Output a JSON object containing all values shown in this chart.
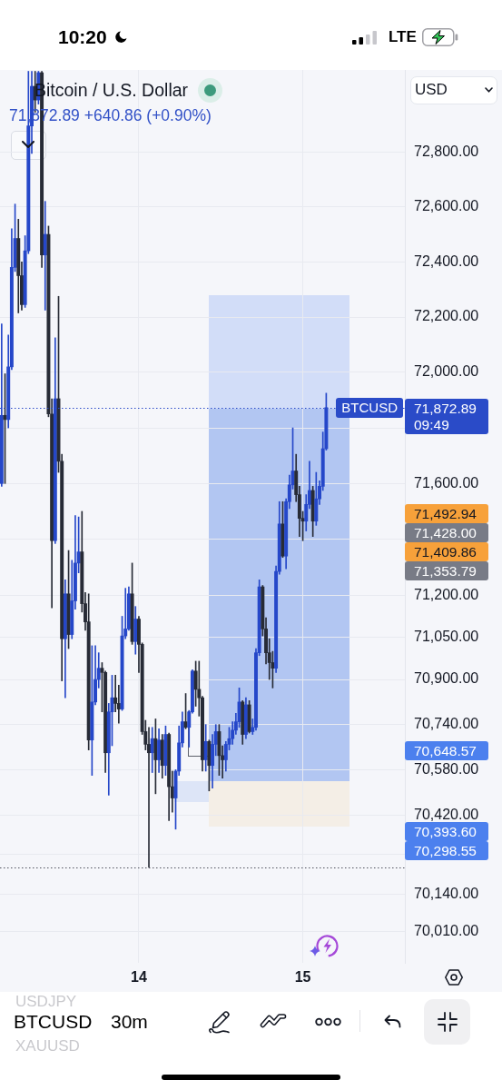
{
  "chart_data": {
    "type": "candlestick",
    "title": "Bitcoin / U.S. Dollar",
    "subtitle": "71,872.89 +640.86 (+0.90%)",
    "categories": [
      null,
      null,
      null,
      null,
      null,
      null,
      null,
      null,
      null,
      null,
      null,
      null,
      null,
      null,
      null,
      null,
      null,
      null,
      null,
      null,
      null,
      null,
      null,
      null,
      null,
      null,
      null,
      null,
      null,
      null,
      null,
      null,
      null,
      null,
      null,
      null,
      null,
      null,
      null,
      null,
      null,
      "14",
      null,
      null,
      null,
      null,
      null,
      null,
      null,
      null,
      null,
      null,
      null,
      null,
      null,
      null,
      null,
      null,
      null,
      null,
      null,
      null,
      null,
      null,
      null,
      null,
      null,
      null,
      null,
      null,
      null,
      null,
      null,
      null,
      null,
      null,
      null,
      null,
      null,
      null,
      null,
      null,
      null,
      null,
      null,
      null,
      null,
      null,
      null,
      null,
      "15",
      null,
      null,
      null,
      null,
      null,
      null,
      null,
      null,
      null,
      null,
      null,
      null,
      null,
      null,
      null,
      null,
      null,
      null,
      null,
      null,
      null,
      null,
      null,
      null,
      null,
      null,
      null,
      null,
      null,
      null
    ],
    "ohlc": [
      [
        71600,
        72175,
        71590,
        71845
      ],
      [
        71845,
        71995,
        71600,
        71830
      ],
      [
        71830,
        72135,
        71800,
        72020
      ],
      [
        72020,
        72520,
        72010,
        72380
      ],
      [
        72380,
        72610,
        72365,
        72485
      ],
      [
        72485,
        72555,
        72215,
        72350
      ],
      [
        72350,
        72400,
        72225,
        72245
      ],
      [
        72245,
        72495,
        72235,
        72440
      ],
      [
        72440,
        73095,
        72430,
        72895
      ],
      [
        72895,
        73095,
        72795,
        73040
      ],
      [
        73040,
        73095,
        72945,
        72990
      ],
      [
        72990,
        73095,
        72975,
        73090
      ],
      [
        73090,
        73095,
        72380,
        72425
      ],
      [
        72425,
        72620,
        72225,
        72500
      ],
      [
        72500,
        72530,
        71840,
        71850
      ],
      [
        71850,
        71905,
        71155,
        71395
      ],
      [
        71395,
        72125,
        71385,
        71905
      ],
      [
        71905,
        72275,
        71640,
        71680
      ],
      [
        71680,
        71705,
        70895,
        71045
      ],
      [
        71045,
        71255,
        70835,
        71205
      ],
      [
        71205,
        71360,
        71010,
        71060
      ],
      [
        71060,
        71325,
        71045,
        71180
      ],
      [
        71180,
        71485,
        71150,
        71315
      ],
      [
        71315,
        71480,
        71280,
        71355
      ],
      [
        71355,
        71500,
        71140,
        71170
      ],
      [
        71170,
        71210,
        71075,
        71105
      ],
      [
        71105,
        71205,
        70650,
        70685
      ],
      [
        70685,
        71020,
        70560,
        70820
      ],
      [
        70820,
        71020,
        70810,
        70900
      ],
      [
        70900,
        70995,
        70870,
        70940
      ],
      [
        70940,
        70960,
        70785,
        70925
      ],
      [
        70925,
        70930,
        70570,
        70640
      ],
      [
        70640,
        70815,
        70490,
        70785
      ],
      [
        70785,
        70915,
        70665,
        70835
      ],
      [
        70835,
        70915,
        70785,
        70815
      ],
      [
        70815,
        70880,
        70745,
        70795
      ],
      [
        70795,
        71125,
        70790,
        71055
      ],
      [
        71055,
        71225,
        71045,
        71080
      ],
      [
        71080,
        71230,
        71075,
        71205
      ],
      [
        71205,
        71315,
        71025,
        71035
      ],
      [
        71035,
        71160,
        70990,
        71115
      ],
      [
        71115,
        71125,
        70925,
        71025
      ],
      [
        71025,
        71030,
        70705,
        70715
      ],
      [
        70715,
        70755,
        70650,
        70670
      ],
      [
        70670,
        70730,
        70235,
        70640
      ],
      [
        70640,
        70730,
        70570,
        70690
      ],
      [
        70690,
        70760,
        70495,
        70615
      ],
      [
        70615,
        70725,
        70570,
        70685
      ],
      [
        70685,
        70705,
        70550,
        70595
      ],
      [
        70595,
        70735,
        70560,
        70705
      ],
      [
        70705,
        70710,
        70400,
        70520
      ],
      [
        70520,
        70575,
        70430,
        70480
      ],
      [
        70480,
        70580,
        70370,
        70575
      ],
      [
        70575,
        70735,
        70560,
        70675
      ],
      [
        70675,
        70785,
        70660,
        70750
      ],
      [
        70750,
        70850,
        70725,
        70730
      ],
      [
        70730,
        70790,
        70660,
        70785
      ],
      [
        70785,
        70935,
        70780,
        70930
      ],
      [
        70930,
        70965,
        70805,
        70865
      ],
      [
        70865,
        70965,
        70770,
        70835
      ],
      [
        70835,
        70840,
        70575,
        70615
      ],
      [
        70615,
        70740,
        70575,
        70680
      ],
      [
        70680,
        70685,
        70505,
        70595
      ],
      [
        70595,
        70705,
        70515,
        70670
      ],
      [
        70670,
        70740,
        70630,
        70715
      ],
      [
        70715,
        70740,
        70560,
        70630
      ],
      [
        70630,
        70665,
        70550,
        70615
      ],
      [
        70615,
        70680,
        70575,
        70670
      ],
      [
        70670,
        70730,
        70650,
        70690
      ],
      [
        70690,
        70750,
        70670,
        70720
      ],
      [
        70720,
        70780,
        70705,
        70750
      ],
      [
        70750,
        70870,
        70730,
        70820
      ],
      [
        70820,
        70825,
        70670,
        70705
      ],
      [
        70705,
        70835,
        70690,
        70810
      ],
      [
        70810,
        70825,
        70710,
        70715
      ],
      [
        70715,
        70760,
        70705,
        70730
      ],
      [
        70730,
        71010,
        70720,
        70995
      ],
      [
        70995,
        71255,
        70985,
        71230
      ],
      [
        71230,
        71235,
        71055,
        71080
      ],
      [
        71080,
        71120,
        70955,
        70995
      ],
      [
        70995,
        71045,
        70900,
        70960
      ],
      [
        70960,
        71000,
        70870,
        70940
      ],
      [
        70940,
        71305,
        70925,
        71285
      ],
      [
        71285,
        71535,
        71275,
        71455
      ],
      [
        71455,
        71535,
        71335,
        71340
      ],
      [
        71340,
        71545,
        71295,
        71535
      ],
      [
        71535,
        71630,
        71510,
        71595
      ],
      [
        71595,
        71800,
        71580,
        71645
      ],
      [
        71645,
        71705,
        71535,
        71560
      ],
      [
        71560,
        71590,
        71410,
        71475
      ],
      [
        71475,
        71500,
        71395,
        71465
      ],
      [
        71465,
        71560,
        71430,
        71525
      ],
      [
        71525,
        71680,
        71510,
        71575
      ],
      [
        71575,
        71590,
        71410,
        71465
      ],
      [
        71465,
        71640,
        71450,
        71545
      ],
      [
        71545,
        71610,
        71525,
        71590
      ],
      [
        71590,
        71785,
        71575,
        71725
      ],
      [
        71725,
        71925,
        71720,
        71872.89
      ],
      null,
      null,
      null,
      null,
      null,
      null,
      null,
      null,
      null,
      null,
      null,
      null,
      null,
      null,
      null,
      null,
      null,
      null,
      null,
      null,
      null,
      null,
      null
    ],
    "colors": [
      "#2547c9",
      "#272b36",
      "#2547c9",
      "#2547c9",
      "#2547c9",
      "#272b36",
      "#272b36",
      "#2547c9",
      "#2547c9",
      "#2547c9",
      "#272b36",
      "#2547c9",
      "#272b36",
      "#2547c9",
      "#272b36",
      "#272b36",
      "#2547c9",
      "#272b36",
      "#272b36",
      "#2547c9",
      "#272b36",
      "#2547c9",
      "#2547c9",
      "#2547c9",
      "#272b36",
      "#272b36",
      "#272b36",
      "#2547c9",
      "#2547c9",
      "#2547c9",
      "#272b36",
      "#272b36",
      "#2547c9",
      "#2547c9",
      "#272b36",
      "#272b36",
      "#2547c9",
      "#2547c9",
      "#2547c9",
      "#272b36",
      "#2547c9",
      "#272b36",
      "#272b36",
      "#272b36",
      "#272b36",
      "#2547c9",
      "#272b36",
      "#2547c9",
      "#272b36",
      "#2547c9",
      "#272b36",
      "#272b36",
      "#2547c9",
      "#2547c9",
      "#2547c9",
      "#272b36",
      "#2547c9",
      "#2547c9",
      "#272b36",
      "#272b36",
      "#272b36",
      "#2547c9",
      "#272b36",
      "#2547c9",
      "#2547c9",
      "#272b36",
      "#272b36",
      "#2547c9",
      "#2547c9",
      "#2547c9",
      "#2547c9",
      "#2547c9",
      "#272b36",
      "#2547c9",
      "#272b36",
      "#2547c9",
      "#2547c9",
      "#2547c9",
      "#272b36",
      "#272b36",
      "#272b36",
      "#272b36",
      "#2547c9",
      "#2547c9",
      "#272b36",
      "#2547c9",
      "#2547c9",
      "#2547c9",
      "#272b36",
      "#272b36",
      "#272b36",
      "#2547c9",
      "#2547c9",
      "#272b36",
      "#2547c9",
      "#2547c9",
      "#2547c9",
      "#2547c9",
      null,
      null,
      null,
      null,
      null,
      null,
      null,
      null,
      null,
      null,
      null,
      null,
      null,
      null,
      null,
      null,
      null,
      null,
      null,
      null,
      null,
      null,
      null
    ],
    "ylim": [
      69900,
      73100
    ],
    "log": true,
    "yticks": [
      {
        "value": 72800,
        "label": "72,800.00"
      },
      {
        "value": 72600,
        "label": "72,600.00"
      },
      {
        "value": 72400,
        "label": "72,400.00"
      },
      {
        "value": 72200,
        "label": "72,200.00"
      },
      {
        "value": 72000,
        "label": "72,000.00"
      },
      {
        "value": 71800,
        "label": null
      },
      {
        "value": 71600,
        "label": "71,600.00"
      },
      {
        "value": 71400,
        "label": null
      },
      {
        "value": 71200,
        "label": "71,200.00"
      },
      {
        "value": 71050,
        "label": "71,050.00"
      },
      {
        "value": 70900,
        "label": "70,900.00"
      },
      {
        "value": 70740,
        "label": "70,740.00"
      },
      {
        "value": 70580,
        "label": "70,580.00"
      },
      {
        "value": 70420,
        "label": "70,420.00"
      },
      {
        "value": 70280,
        "label": null
      },
      {
        "value": 70140,
        "label": "70,140.00"
      },
      {
        "value": 70010,
        "label": "70,010.00"
      }
    ],
    "grid": true,
    "ref_lines": [
      {
        "axis": "y",
        "value": 71872.89,
        "label": "BTCUSD",
        "color": "#2a4bc8",
        "line_style": "dotted"
      },
      {
        "axis": "y",
        "value": 70235,
        "color": "#50535e",
        "line_style": "dotted"
      }
    ],
    "annotations": [
      "10:20",
      "LTE",
      "USD",
      "71,872.89",
      "09:49",
      "71,492.94",
      "71,428.00",
      "71,409.86",
      "71,353.79",
      "70,648.57",
      "70,393.60",
      "70,298.55",
      "USDJPY",
      "BTCUSD",
      "XAUUSD",
      "30m"
    ]
  }
}
